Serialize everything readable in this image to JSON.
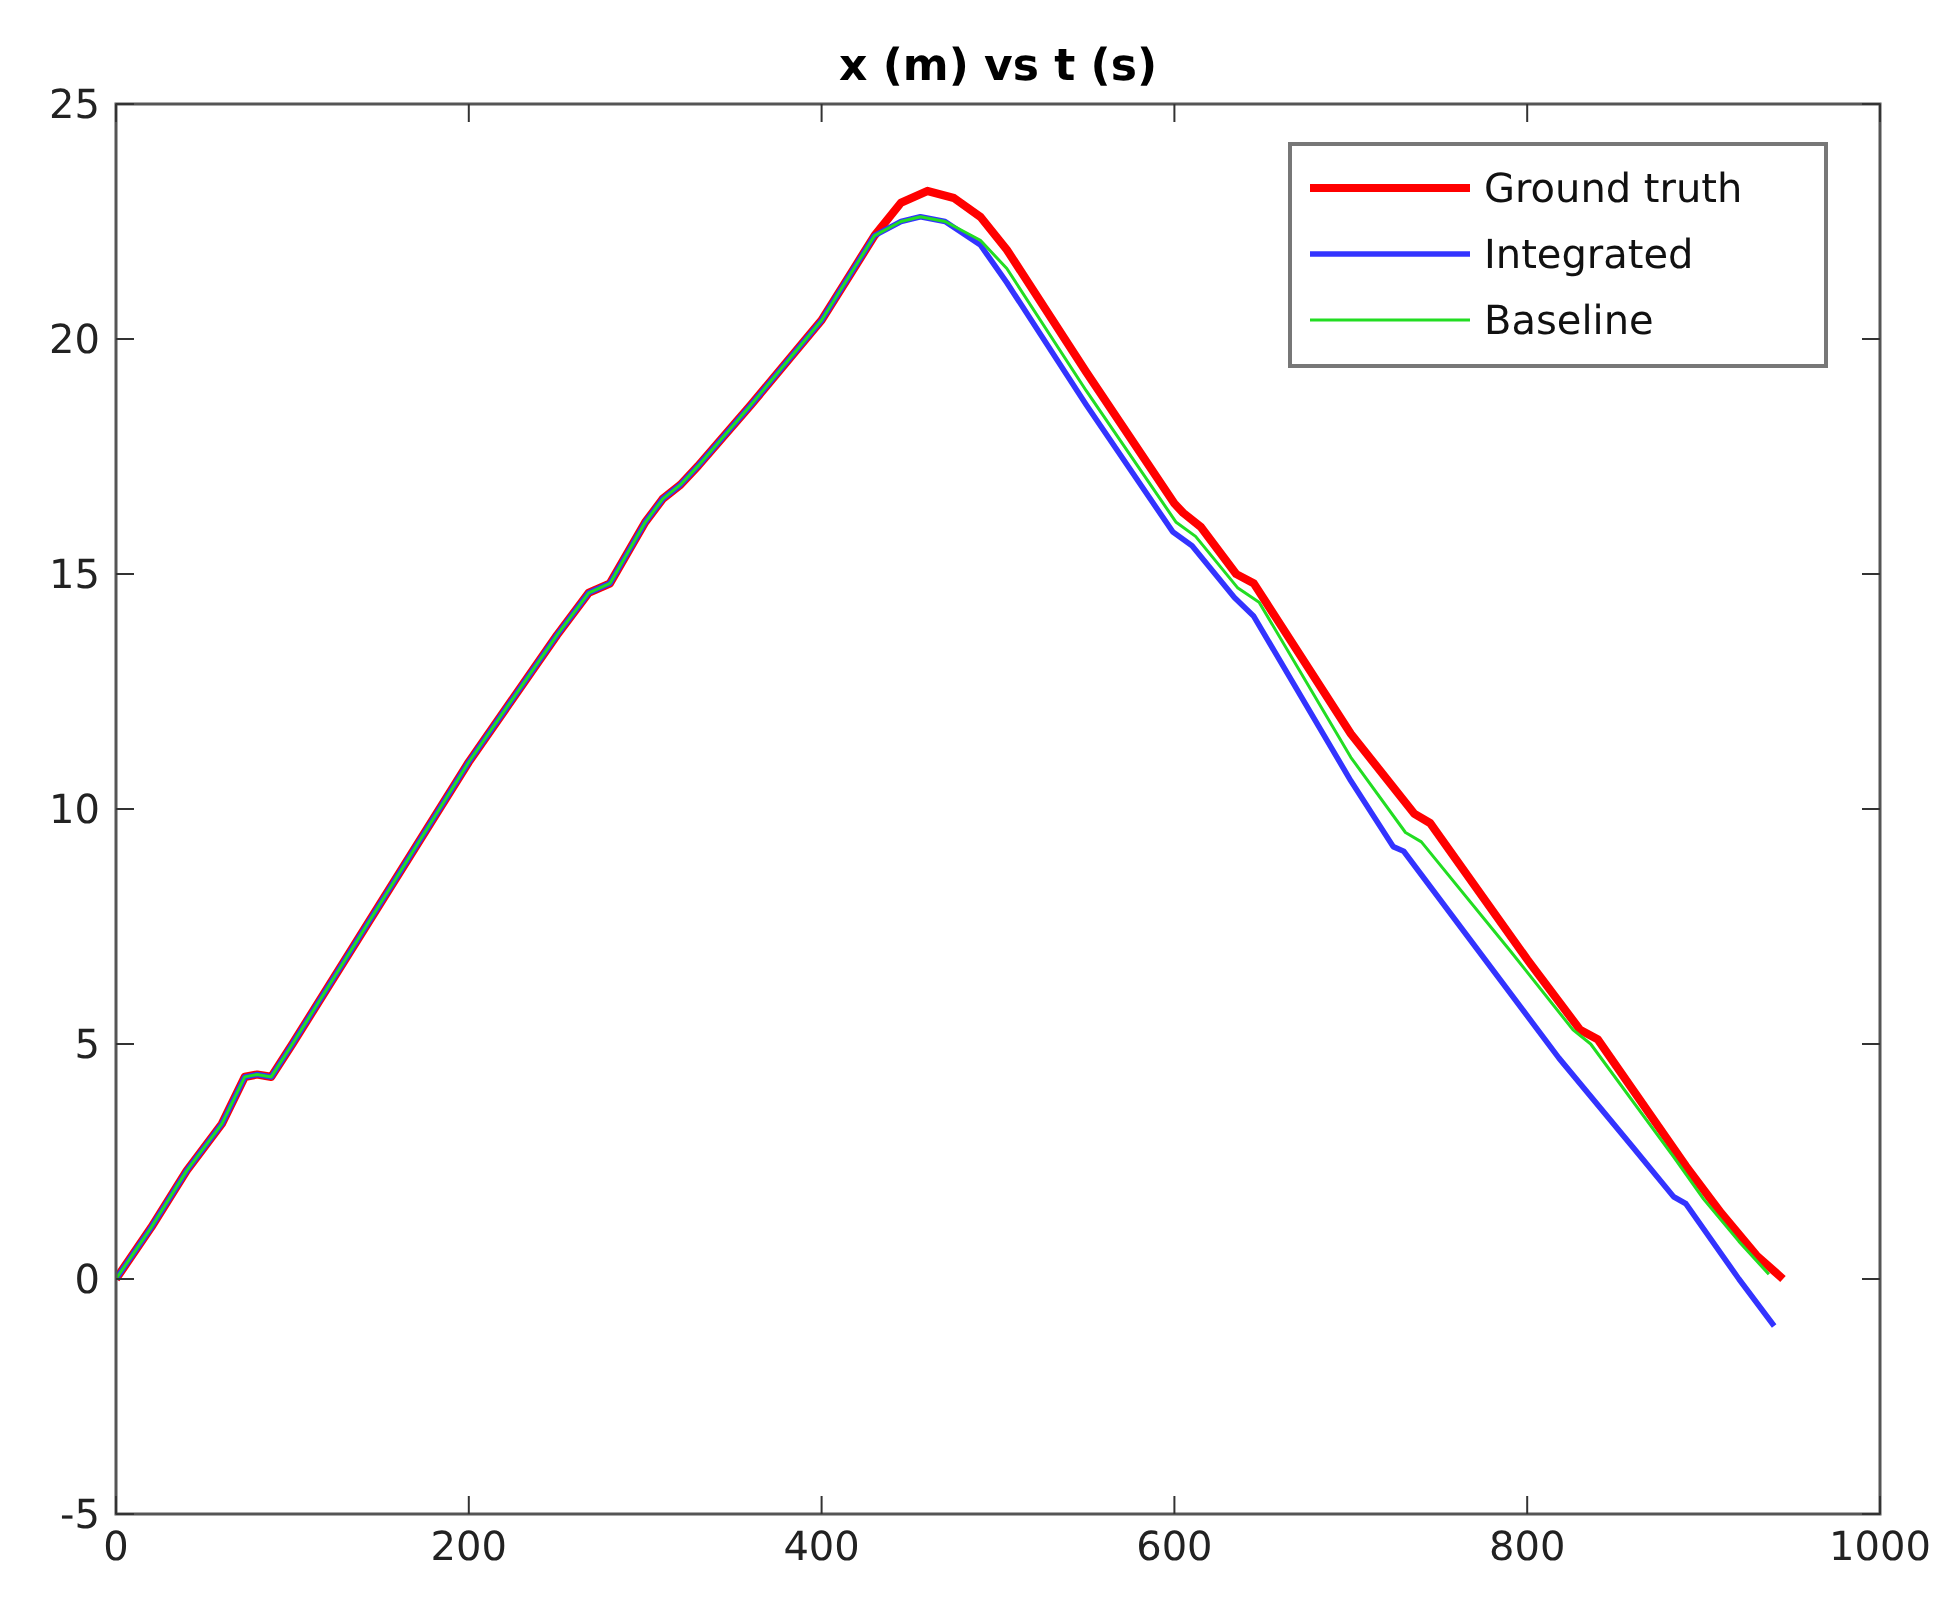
{
  "chart_data": {
    "type": "line",
    "title": "x (m) vs t (s)",
    "xlim": [
      0,
      1000
    ],
    "xticks": [
      0,
      200,
      400,
      600,
      800,
      1000
    ],
    "ylim": [
      -5,
      25
    ],
    "yticks": [
      -5,
      0,
      5,
      10,
      15,
      20,
      25
    ],
    "legend": "top right",
    "grid": false,
    "series": [
      {
        "name": "Ground truth",
        "color": "#ff0000",
        "x": [
          0,
          20,
          40,
          60,
          73,
          80,
          88,
          100,
          150,
          200,
          250,
          268,
          280,
          300,
          310,
          320,
          330,
          360,
          400,
          420,
          430,
          445,
          460,
          475,
          490,
          505,
          550,
          600,
          605,
          615,
          635,
          645,
          700,
          736,
          745,
          800,
          830,
          840,
          890,
          910,
          930,
          945
        ],
        "values": [
          0,
          1.1,
          2.3,
          3.3,
          4.3,
          4.35,
          4.3,
          5.0,
          8.0,
          11.0,
          13.7,
          14.6,
          14.8,
          16.1,
          16.6,
          16.9,
          17.3,
          18.6,
          20.4,
          21.6,
          22.2,
          22.9,
          23.15,
          23.0,
          22.6,
          21.9,
          19.3,
          16.5,
          16.3,
          16.0,
          15.0,
          14.8,
          11.6,
          9.9,
          9.7,
          6.8,
          5.3,
          5.1,
          2.4,
          1.4,
          0.5,
          0.0
        ]
      },
      {
        "name": "Integrated",
        "color": "#3333ff",
        "x": [
          0,
          20,
          40,
          60,
          73,
          80,
          88,
          100,
          150,
          200,
          250,
          268,
          280,
          300,
          310,
          320,
          330,
          360,
          400,
          420,
          430,
          445,
          456,
          470,
          490,
          505,
          550,
          599,
          610,
          634,
          645,
          700,
          724,
          730,
          780,
          818,
          860,
          883,
          890,
          920,
          940
        ],
        "values": [
          0,
          1.1,
          2.3,
          3.3,
          4.3,
          4.35,
          4.3,
          5.0,
          8.0,
          11.0,
          13.7,
          14.6,
          14.8,
          16.1,
          16.6,
          16.9,
          17.3,
          18.6,
          20.4,
          21.6,
          22.2,
          22.5,
          22.6,
          22.5,
          22.0,
          21.2,
          18.6,
          15.9,
          15.6,
          14.5,
          14.1,
          10.6,
          9.2,
          9.1,
          6.6,
          4.7,
          2.8,
          1.75,
          1.6,
          0.0,
          -1.0
        ]
      },
      {
        "name": "Baseline",
        "color": "#22dd22",
        "x": [
          0,
          20,
          40,
          60,
          73,
          80,
          88,
          100,
          150,
          200,
          250,
          268,
          280,
          300,
          310,
          320,
          330,
          360,
          400,
          420,
          430,
          445,
          456,
          470,
          490,
          505,
          550,
          601,
          612,
          636,
          648,
          700,
          731,
          740,
          790,
          826,
          836,
          883,
          900,
          920,
          937
        ],
        "values": [
          0,
          1.1,
          2.3,
          3.3,
          4.3,
          4.35,
          4.3,
          5.0,
          8.0,
          11.0,
          13.7,
          14.6,
          14.8,
          16.1,
          16.6,
          16.9,
          17.3,
          18.6,
          20.4,
          21.6,
          22.2,
          22.5,
          22.6,
          22.5,
          22.1,
          21.5,
          18.9,
          16.1,
          15.8,
          14.7,
          14.4,
          11.1,
          9.5,
          9.3,
          7.0,
          5.3,
          5.0,
          2.6,
          1.7,
          0.8,
          0.1
        ]
      }
    ]
  }
}
